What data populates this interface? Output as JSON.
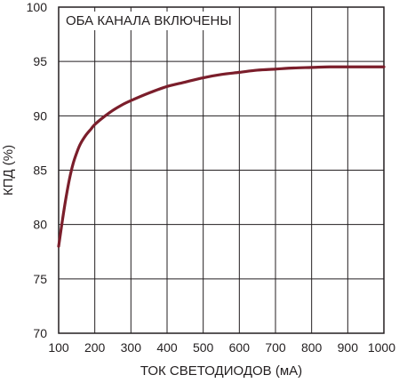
{
  "chart_data": {
    "type": "line",
    "annotation": "ОБА КАНАЛА ВКЛЮЧЕНЫ",
    "xlabel": "ТОК СВЕТОДИОДОВ (мА)",
    "ylabel": "КПД (%)",
    "xlim": [
      100,
      1000
    ],
    "ylim": [
      70,
      100
    ],
    "xticks": [
      100,
      200,
      300,
      400,
      500,
      600,
      700,
      800,
      900,
      1000
    ],
    "yticks": [
      70,
      75,
      80,
      85,
      90,
      95,
      100
    ],
    "grid": true,
    "series": [
      {
        "color": "#7b1e2b",
        "x": [
          100,
          110,
          120,
          130,
          140,
          150,
          160,
          175,
          190,
          200,
          225,
          250,
          275,
          300,
          350,
          400,
          450,
          500,
          550,
          600,
          650,
          700,
          750,
          800,
          850,
          900,
          950,
          1000
        ],
        "y": [
          78.0,
          80.3,
          82.4,
          84.2,
          85.6,
          86.6,
          87.4,
          88.2,
          88.8,
          89.2,
          89.9,
          90.5,
          91.0,
          91.4,
          92.1,
          92.7,
          93.1,
          93.5,
          93.8,
          94.0,
          94.2,
          94.3,
          94.4,
          94.45,
          94.5,
          94.5,
          94.5,
          94.5
        ]
      }
    ]
  }
}
